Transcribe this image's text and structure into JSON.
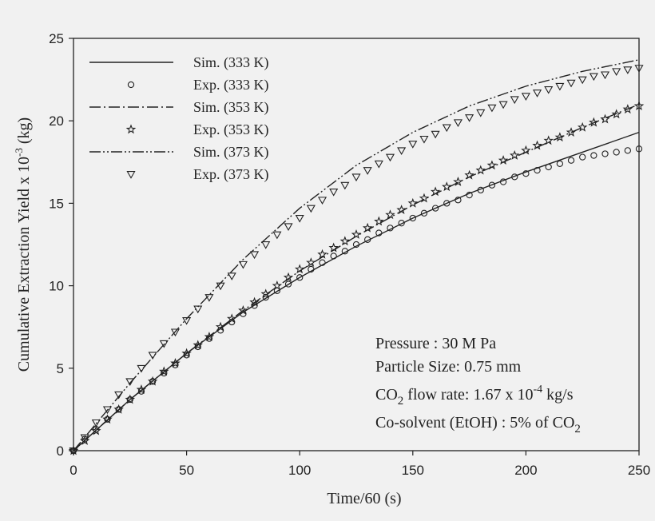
{
  "chart_data": {
    "type": "line",
    "xlabel": "Time/60 (s)",
    "ylabel": {
      "main": "Cumulative Extraction Yield x 10",
      "exp": "-3",
      "unit": " (kg)"
    },
    "xlim": [
      0,
      250
    ],
    "ylim": [
      0,
      25
    ],
    "xticks": [
      0,
      50,
      100,
      150,
      200,
      250
    ],
    "yticks": [
      0,
      5,
      10,
      15,
      20,
      25
    ],
    "grid": false,
    "legend_position": "top-left",
    "series": [
      {
        "name": "Sim. (333 K)",
        "kind": "line",
        "dash": "",
        "color": "#222222",
        "x": [
          0,
          25,
          50,
          75,
          100,
          125,
          150,
          175,
          200,
          225,
          250
        ],
        "y": [
          0,
          3.1,
          5.9,
          8.4,
          10.5,
          12.4,
          14.1,
          15.6,
          16.9,
          18.1,
          19.3
        ]
      },
      {
        "name": "Exp. (333 K)",
        "kind": "marker",
        "marker": "circle",
        "color": "#222222",
        "x": [
          0,
          5,
          10,
          15,
          20,
          25,
          30,
          35,
          40,
          45,
          50,
          55,
          60,
          65,
          70,
          75,
          80,
          85,
          90,
          95,
          100,
          105,
          110,
          115,
          120,
          125,
          130,
          135,
          140,
          145,
          150,
          155,
          160,
          165,
          170,
          175,
          180,
          185,
          190,
          195,
          200,
          205,
          210,
          215,
          220,
          225,
          230,
          235,
          240,
          245,
          250
        ],
        "y": [
          0,
          0.7,
          1.3,
          1.9,
          2.5,
          3.1,
          3.6,
          4.2,
          4.7,
          5.2,
          5.8,
          6.3,
          6.8,
          7.3,
          7.8,
          8.3,
          8.8,
          9.3,
          9.7,
          10.1,
          10.5,
          11.0,
          11.4,
          11.8,
          12.1,
          12.5,
          12.8,
          13.2,
          13.5,
          13.8,
          14.1,
          14.4,
          14.7,
          15.0,
          15.2,
          15.5,
          15.8,
          16.1,
          16.3,
          16.6,
          16.8,
          17.0,
          17.2,
          17.4,
          17.6,
          17.8,
          17.9,
          18.0,
          18.1,
          18.2,
          18.3
        ]
      },
      {
        "name": "Sim. (353 K)",
        "kind": "line",
        "dash": "14,4,2,4",
        "color": "#222222",
        "x": [
          0,
          25,
          50,
          75,
          100,
          125,
          150,
          175,
          200,
          225,
          250
        ],
        "y": [
          0,
          3.1,
          5.9,
          8.5,
          10.9,
          13.0,
          14.9,
          16.6,
          18.1,
          19.6,
          21.0
        ]
      },
      {
        "name": "Exp. (353 K)",
        "kind": "marker",
        "marker": "star",
        "color": "#222222",
        "x": [
          0,
          5,
          10,
          15,
          20,
          25,
          30,
          35,
          40,
          45,
          50,
          55,
          60,
          65,
          70,
          75,
          80,
          85,
          90,
          95,
          100,
          105,
          110,
          115,
          120,
          125,
          130,
          135,
          140,
          145,
          150,
          155,
          160,
          165,
          170,
          175,
          180,
          185,
          190,
          195,
          200,
          205,
          210,
          215,
          220,
          225,
          230,
          235,
          240,
          245,
          250
        ],
        "y": [
          0,
          0.6,
          1.2,
          1.9,
          2.5,
          3.1,
          3.7,
          4.2,
          4.8,
          5.3,
          5.9,
          6.4,
          6.9,
          7.5,
          8.0,
          8.5,
          9.0,
          9.5,
          10.0,
          10.5,
          11.0,
          11.4,
          11.9,
          12.3,
          12.7,
          13.1,
          13.5,
          13.9,
          14.3,
          14.6,
          15.0,
          15.3,
          15.7,
          16.0,
          16.3,
          16.7,
          17.0,
          17.3,
          17.6,
          17.9,
          18.2,
          18.5,
          18.8,
          19.0,
          19.3,
          19.6,
          19.9,
          20.1,
          20.4,
          20.7,
          20.9
        ]
      },
      {
        "name": "Sim. (373 K)",
        "kind": "line",
        "dash": "14,3,2,3,2,3",
        "color": "#222222",
        "x": [
          0,
          25,
          50,
          75,
          100,
          125,
          150,
          175,
          200,
          225,
          250
        ],
        "y": [
          0,
          4.1,
          8.0,
          11.6,
          14.7,
          17.3,
          19.3,
          20.9,
          22.1,
          23.0,
          23.7
        ]
      },
      {
        "name": "Exp. (373 K)",
        "kind": "marker",
        "marker": "triangle-down",
        "color": "#222222",
        "x": [
          0,
          5,
          10,
          15,
          20,
          25,
          30,
          35,
          40,
          45,
          50,
          55,
          60,
          65,
          70,
          75,
          80,
          85,
          90,
          95,
          100,
          105,
          110,
          115,
          120,
          125,
          130,
          135,
          140,
          145,
          150,
          155,
          160,
          165,
          170,
          175,
          180,
          185,
          190,
          195,
          200,
          205,
          210,
          215,
          220,
          225,
          230,
          235,
          240,
          245,
          250
        ],
        "y": [
          0,
          0.8,
          1.7,
          2.5,
          3.4,
          4.2,
          5.0,
          5.8,
          6.5,
          7.2,
          7.9,
          8.6,
          9.3,
          10.0,
          10.6,
          11.3,
          11.9,
          12.5,
          13.1,
          13.6,
          14.1,
          14.7,
          15.2,
          15.7,
          16.1,
          16.6,
          17.0,
          17.4,
          17.8,
          18.2,
          18.6,
          18.9,
          19.2,
          19.6,
          19.9,
          20.2,
          20.5,
          20.8,
          21.0,
          21.3,
          21.5,
          21.7,
          21.9,
          22.1,
          22.3,
          22.5,
          22.7,
          22.8,
          23.0,
          23.1,
          23.2
        ]
      }
    ]
  },
  "annotation": {
    "pressure": "Pressure      :  30 M Pa",
    "particle": "Particle Size:  0.75 mm",
    "flow_prefix": "CO",
    "flow_sub": "2",
    "flow_mid": " flow rate: 1.67 x 10",
    "flow_exp": "-4",
    "flow_suffix": " kg/s",
    "cosolvent_prefix": "Co-solvent (EtOH)    : 5% of CO",
    "cosolvent_sub": "2"
  }
}
